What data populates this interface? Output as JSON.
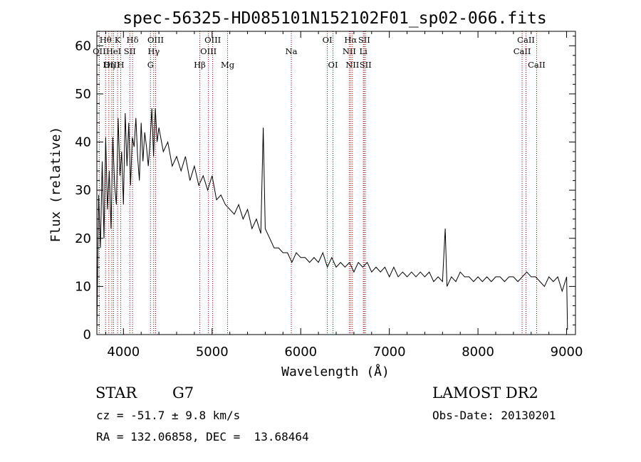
{
  "chart_data": {
    "type": "line",
    "title": "spec-56325-HD085101N152102F01_sp02-066.fits",
    "xlabel": "Wavelength (Å)",
    "ylabel": "Flux (relative)",
    "xlim": [
      3700,
      9100
    ],
    "ylim": [
      0,
      63
    ],
    "xticks": [
      4000,
      5000,
      6000,
      7000,
      8000,
      9000
    ],
    "yticks": [
      0,
      10,
      20,
      30,
      40,
      50,
      60
    ],
    "grid": false,
    "series": [
      {
        "x": [
          3700,
          3720,
          3740,
          3760,
          3780,
          3800,
          3820,
          3840,
          3860,
          3880,
          3900,
          3920,
          3940,
          3960,
          3980,
          4000,
          4020,
          4040,
          4060,
          4080,
          4100,
          4120,
          4140,
          4160,
          4180,
          4200,
          4220,
          4240,
          4260,
          4280,
          4300,
          4320,
          4340,
          4360,
          4380,
          4400,
          4450,
          4500,
          4550,
          4600,
          4650,
          4700,
          4750,
          4800,
          4850,
          4900,
          4950,
          5000,
          5050,
          5100,
          5150,
          5200,
          5250,
          5300,
          5350,
          5400,
          5450,
          5500,
          5550,
          5577,
          5600,
          5650,
          5700,
          5750,
          5800,
          5850,
          5900,
          5950,
          6000,
          6050,
          6100,
          6150,
          6200,
          6250,
          6300,
          6350,
          6400,
          6450,
          6500,
          6550,
          6600,
          6650,
          6700,
          6750,
          6800,
          6850,
          6900,
          6950,
          7000,
          7050,
          7100,
          7150,
          7200,
          7250,
          7300,
          7350,
          7400,
          7450,
          7500,
          7550,
          7600,
          7630,
          7650,
          7700,
          7750,
          7800,
          7850,
          7900,
          7950,
          8000,
          8050,
          8100,
          8150,
          8200,
          8250,
          8300,
          8350,
          8400,
          8450,
          8500,
          8550,
          8600,
          8650,
          8700,
          8750,
          8800,
          8850,
          8900,
          8950,
          9000,
          9010
        ],
        "y": [
          1,
          29,
          18,
          36,
          20,
          41,
          26,
          34,
          22,
          41,
          31,
          27,
          45,
          33,
          38,
          27,
          46,
          35,
          44,
          31,
          41,
          39,
          45,
          37,
          32,
          44,
          36,
          42,
          39,
          35,
          40,
          47,
          37,
          47,
          40,
          43,
          38,
          40,
          35,
          37,
          34,
          37,
          32,
          35,
          31,
          33,
          30,
          33,
          28,
          29,
          27,
          26,
          25,
          27,
          24,
          26,
          22,
          24,
          21,
          43,
          22,
          20,
          18,
          18,
          17,
          17,
          15,
          17,
          16,
          16,
          15,
          16,
          15,
          17,
          14,
          16,
          14,
          15,
          14,
          15,
          13,
          15,
          14,
          15,
          13,
          14,
          13,
          14,
          12,
          14,
          12,
          13,
          12,
          13,
          12,
          13,
          12,
          13,
          11,
          12,
          11,
          22,
          10,
          12,
          11,
          13,
          12,
          12,
          11,
          12,
          11,
          12,
          11,
          12,
          12,
          11,
          12,
          12,
          11,
          12,
          13,
          12,
          12,
          11,
          10,
          12,
          11,
          12,
          9,
          12,
          1
        ]
      }
    ],
    "line_markers": [
      {
        "label": "OII",
        "wl": 3727,
        "row": 1
      },
      {
        "label": "Hθ",
        "wl": 3798,
        "row": 0
      },
      {
        "label": "Hη",
        "wl": 3835,
        "row": 2
      },
      {
        "label": "OIII",
        "wl": 3869,
        "row": 2
      },
      {
        "label": "HeI",
        "wl": 3889,
        "row": 1
      },
      {
        "label": "K",
        "wl": 3934,
        "row": 0
      },
      {
        "label": "H",
        "wl": 3969,
        "row": 2
      },
      {
        "label": "SII",
        "wl": 4072,
        "row": 1
      },
      {
        "label": "Hδ",
        "wl": 4102,
        "row": 0
      },
      {
        "label": "G",
        "wl": 4305,
        "row": 2
      },
      {
        "label": "OIII",
        "wl": 4363,
        "row": 0
      },
      {
        "label": "Hγ",
        "wl": 4341,
        "row": 1
      },
      {
        "label": "Hβ",
        "wl": 4861,
        "row": 2
      },
      {
        "label": "OIII",
        "wl": 4959,
        "row": 1
      },
      {
        "label": "OIII",
        "wl": 5007,
        "row": 0
      },
      {
        "label": "Mg",
        "wl": 5175,
        "row": 2
      },
      {
        "label": "Na",
        "wl": 5894,
        "row": 1
      },
      {
        "label": "OI",
        "wl": 6300,
        "row": 0
      },
      {
        "label": "OI",
        "wl": 6364,
        "row": 2
      },
      {
        "label": "NII",
        "wl": 6548,
        "row": 1
      },
      {
        "label": "Hα",
        "wl": 6563,
        "row": 0
      },
      {
        "label": "NII",
        "wl": 6583,
        "row": 2
      },
      {
        "label": "SII",
        "wl": 6716,
        "row": 0
      },
      {
        "label": "Li",
        "wl": 6707,
        "row": 1
      },
      {
        "label": "SII",
        "wl": 6731,
        "row": 2
      },
      {
        "label": "CaII",
        "wl": 8498,
        "row": 1
      },
      {
        "label": "CaII",
        "wl": 8542,
        "row": 0
      },
      {
        "label": "CaII",
        "wl": 8662,
        "row": 2
      }
    ]
  },
  "info": {
    "object_class": "STAR",
    "subclass": "G7",
    "survey": "LAMOST DR2",
    "cz": "cz = -51.7 ± 9.8 km/s",
    "obs_date": "Obs-Date: 20130201",
    "coords": "RA = 132.06858, DEC =  13.68464"
  },
  "colors": {
    "line": "#000000",
    "marker": "#8b0000",
    "background": "#ffffff"
  }
}
